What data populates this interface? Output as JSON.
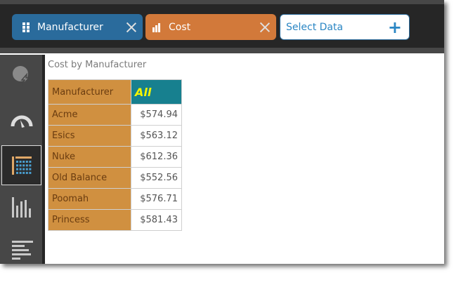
{
  "toolbar": {
    "pills": [
      {
        "label": "Manufacturer",
        "icon": "grid-icon",
        "color": "#2a6b9c"
      },
      {
        "label": "Cost",
        "icon": "bar-chart-icon",
        "color": "#d2793a"
      }
    ],
    "select_data_label": "Select Data"
  },
  "sidebar": {
    "items": [
      "pie-lightning-icon",
      "gauge-icon",
      "table-icon",
      "bar-chart-icon",
      "horizontal-bar-icon"
    ],
    "active": "table-icon"
  },
  "report": {
    "title": "Cost by Manufacturer",
    "header": {
      "col1": "Manufacturer",
      "col2": "All"
    },
    "rows": [
      {
        "name": "Acme",
        "value": "$574.94"
      },
      {
        "name": "Esics",
        "value": "$563.12"
      },
      {
        "name": "Nuke",
        "value": "$612.36"
      },
      {
        "name": "Old Balance",
        "value": "$552.56"
      },
      {
        "name": "Poomah",
        "value": "$576.71"
      },
      {
        "name": "Princess",
        "value": "$581.43"
      }
    ]
  }
}
